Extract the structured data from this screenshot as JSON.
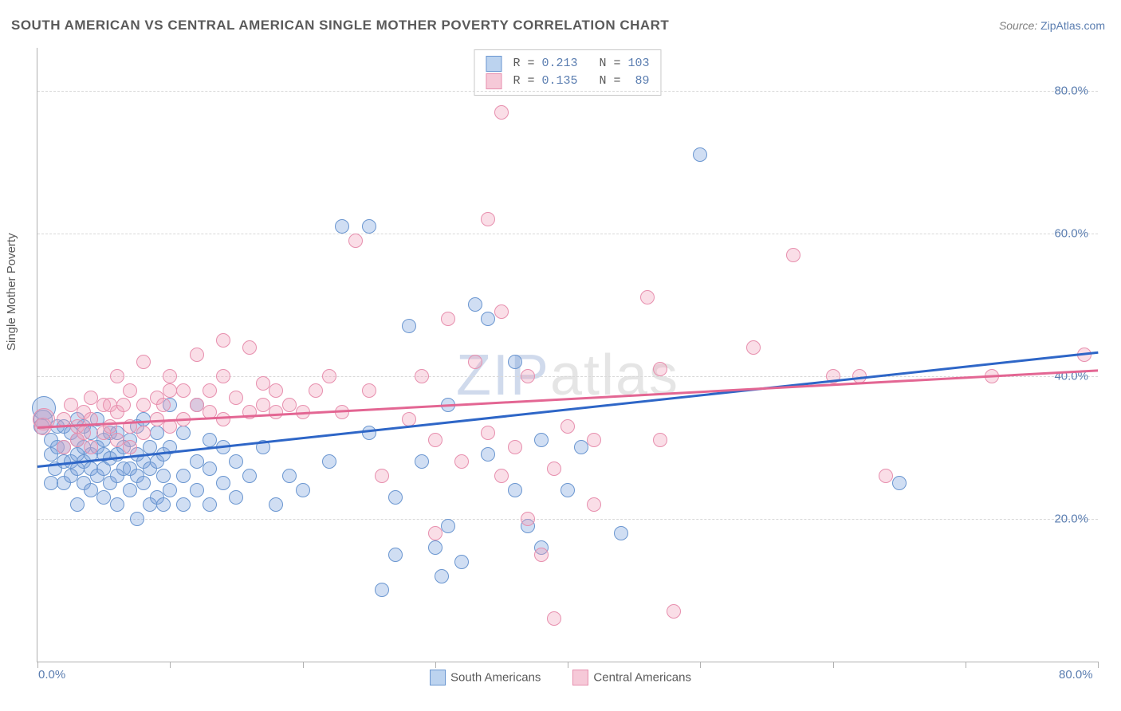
{
  "title": "SOUTH AMERICAN VS CENTRAL AMERICAN SINGLE MOTHER POVERTY CORRELATION CHART",
  "source": {
    "label": "Source:",
    "site": "ZipAtlas.com"
  },
  "ylabel": "Single Mother Poverty",
  "xlim": [
    0,
    80
  ],
  "ylim": [
    0,
    86
  ],
  "y_ticks": [
    20,
    40,
    60,
    80
  ],
  "y_tick_labels": [
    "20.0%",
    "40.0%",
    "60.0%",
    "80.0%"
  ],
  "x_ticks": [
    0,
    10,
    20,
    30,
    40,
    50,
    60,
    70,
    80
  ],
  "x_tick_labels": {
    "0": "0.0%",
    "80": "80.0%"
  },
  "grid_color": "#d8d8d8",
  "axis_color": "#b0b0b0",
  "tick_label_color": "#5a7db0",
  "background_color": "#ffffff",
  "watermark": {
    "zip": "ZIP",
    "atlas": "atlas"
  },
  "series": [
    {
      "name": "South Americans",
      "fill": "rgba(120,160,220,0.35)",
      "stroke": "#6a96d0",
      "swatch_fill": "#bcd3ef",
      "swatch_border": "#6a96d0",
      "legend_label": "South Americans",
      "stats": {
        "R": "0.213",
        "N": "103"
      },
      "trend": {
        "x1": 0,
        "y1": 27.5,
        "x2": 80,
        "y2": 43.5,
        "color": "#2e66c7",
        "width": 2.5
      },
      "dot_radius": 8,
      "points": [
        [
          0.5,
          35.5,
          14
        ],
        [
          0.4,
          34,
          11
        ],
        [
          0.3,
          33,
          9
        ],
        [
          1,
          25
        ],
        [
          1,
          29
        ],
        [
          1,
          31
        ],
        [
          1.3,
          27
        ],
        [
          1.5,
          33
        ],
        [
          1.5,
          30
        ],
        [
          2,
          25
        ],
        [
          2,
          28
        ],
        [
          2,
          30
        ],
        [
          2,
          33
        ],
        [
          2.5,
          26
        ],
        [
          2.5,
          28
        ],
        [
          2.5,
          32
        ],
        [
          3,
          22
        ],
        [
          3,
          27
        ],
        [
          3,
          29
        ],
        [
          3,
          31
        ],
        [
          3,
          34
        ],
        [
          3.5,
          25
        ],
        [
          3.5,
          28
        ],
        [
          3.5,
          30
        ],
        [
          3.5,
          33
        ],
        [
          4,
          24
        ],
        [
          4,
          27
        ],
        [
          4,
          29
        ],
        [
          4,
          32
        ],
        [
          4.5,
          26
        ],
        [
          4.5,
          30
        ],
        [
          4.5,
          34
        ],
        [
          5,
          23
        ],
        [
          5,
          27
        ],
        [
          5,
          29
        ],
        [
          5,
          31
        ],
        [
          5.5,
          25
        ],
        [
          5.5,
          28.5
        ],
        [
          5.5,
          32
        ],
        [
          6,
          22
        ],
        [
          6,
          26
        ],
        [
          6,
          29
        ],
        [
          6,
          32
        ],
        [
          6.5,
          27
        ],
        [
          6.5,
          30
        ],
        [
          7,
          24
        ],
        [
          7,
          27
        ],
        [
          7,
          31
        ],
        [
          7.5,
          20
        ],
        [
          7.5,
          26
        ],
        [
          7.5,
          29
        ],
        [
          7.5,
          33
        ],
        [
          8,
          25
        ],
        [
          8,
          28
        ],
        [
          8,
          34
        ],
        [
          8.5,
          22
        ],
        [
          8.5,
          27
        ],
        [
          8.5,
          30
        ],
        [
          9,
          23
        ],
        [
          9,
          28
        ],
        [
          9,
          32
        ],
        [
          9.5,
          22
        ],
        [
          9.5,
          26
        ],
        [
          9.5,
          29
        ],
        [
          10,
          24
        ],
        [
          10,
          30
        ],
        [
          10,
          36
        ],
        [
          11,
          22
        ],
        [
          11,
          26
        ],
        [
          11,
          32
        ],
        [
          12,
          24
        ],
        [
          12,
          28
        ],
        [
          12,
          36
        ],
        [
          13,
          22
        ],
        [
          13,
          27
        ],
        [
          13,
          31
        ],
        [
          14,
          25
        ],
        [
          14,
          30
        ],
        [
          15,
          23
        ],
        [
          15,
          28
        ],
        [
          16,
          26
        ],
        [
          17,
          30
        ],
        [
          18,
          22
        ],
        [
          19,
          26
        ],
        [
          20,
          24
        ],
        [
          22,
          28
        ],
        [
          23,
          61
        ],
        [
          25,
          32
        ],
        [
          25,
          61
        ],
        [
          26,
          10
        ],
        [
          27,
          15
        ],
        [
          27,
          23
        ],
        [
          28,
          47
        ],
        [
          29,
          28
        ],
        [
          30,
          16
        ],
        [
          30.5,
          12
        ],
        [
          31,
          19
        ],
        [
          31,
          36
        ],
        [
          32,
          14
        ],
        [
          33,
          50
        ],
        [
          34,
          29
        ],
        [
          34,
          48
        ],
        [
          36,
          24
        ],
        [
          36,
          42
        ],
        [
          37,
          19
        ],
        [
          38,
          16
        ],
        [
          38,
          31
        ],
        [
          40,
          24
        ],
        [
          41,
          30
        ],
        [
          44,
          18
        ],
        [
          50,
          71
        ],
        [
          65,
          25
        ]
      ]
    },
    {
      "name": "Central Americans",
      "fill": "rgba(240,160,185,0.35)",
      "stroke": "#e78fae",
      "swatch_fill": "#f6c9d8",
      "swatch_border": "#e78fae",
      "legend_label": "Central Americans",
      "stats": {
        "R": "0.135",
        "N": " 89"
      },
      "trend": {
        "x1": 0,
        "y1": 33,
        "x2": 80,
        "y2": 41,
        "color": "#e36693",
        "width": 2.5
      },
      "dot_radius": 8,
      "points": [
        [
          0.5,
          34,
          13
        ],
        [
          0.4,
          33,
          10
        ],
        [
          2,
          30
        ],
        [
          2,
          34
        ],
        [
          2.5,
          36
        ],
        [
          3,
          31
        ],
        [
          3,
          33
        ],
        [
          3.5,
          32
        ],
        [
          3.5,
          35
        ],
        [
          4,
          30
        ],
        [
          4,
          34
        ],
        [
          4,
          37
        ],
        [
          5,
          32
        ],
        [
          5,
          36
        ],
        [
          5.5,
          33
        ],
        [
          5.5,
          36
        ],
        [
          6,
          31
        ],
        [
          6,
          35
        ],
        [
          6,
          40
        ],
        [
          6.5,
          36
        ],
        [
          7,
          30
        ],
        [
          7,
          33
        ],
        [
          7,
          38
        ],
        [
          8,
          32
        ],
        [
          8,
          36
        ],
        [
          8,
          42
        ],
        [
          9,
          34
        ],
        [
          9,
          37
        ],
        [
          9.5,
          36
        ],
        [
          10,
          33
        ],
        [
          10,
          38
        ],
        [
          10,
          40
        ],
        [
          11,
          34
        ],
        [
          11,
          38
        ],
        [
          12,
          36
        ],
        [
          12,
          43
        ],
        [
          13,
          35
        ],
        [
          13,
          38
        ],
        [
          14,
          34
        ],
        [
          14,
          40
        ],
        [
          14,
          45
        ],
        [
          15,
          37
        ],
        [
          16,
          35
        ],
        [
          16,
          44
        ],
        [
          17,
          36
        ],
        [
          17,
          39
        ],
        [
          18,
          35
        ],
        [
          18,
          38
        ],
        [
          19,
          36
        ],
        [
          20,
          35
        ],
        [
          21,
          38
        ],
        [
          22,
          40
        ],
        [
          23,
          35
        ],
        [
          24,
          59
        ],
        [
          25,
          38
        ],
        [
          26,
          26
        ],
        [
          28,
          34
        ],
        [
          29,
          40
        ],
        [
          30,
          18
        ],
        [
          30,
          31
        ],
        [
          31,
          48
        ],
        [
          32,
          28
        ],
        [
          33,
          42
        ],
        [
          34,
          32
        ],
        [
          34,
          62
        ],
        [
          35,
          26
        ],
        [
          35,
          49
        ],
        [
          35,
          77
        ],
        [
          36,
          30
        ],
        [
          37,
          20
        ],
        [
          37,
          40
        ],
        [
          38,
          15
        ],
        [
          39,
          6
        ],
        [
          39,
          27
        ],
        [
          40,
          33
        ],
        [
          42,
          22
        ],
        [
          42,
          31
        ],
        [
          46,
          51
        ],
        [
          47,
          31
        ],
        [
          47,
          41
        ],
        [
          48,
          7
        ],
        [
          54,
          44
        ],
        [
          57,
          57
        ],
        [
          60,
          40
        ],
        [
          62,
          40
        ],
        [
          64,
          26
        ],
        [
          72,
          40
        ],
        [
          79,
          43
        ]
      ]
    }
  ],
  "bottom_legend_gap": 40,
  "stats_legend": {
    "border_color": "#c8c8c8",
    "font": "monospace"
  }
}
